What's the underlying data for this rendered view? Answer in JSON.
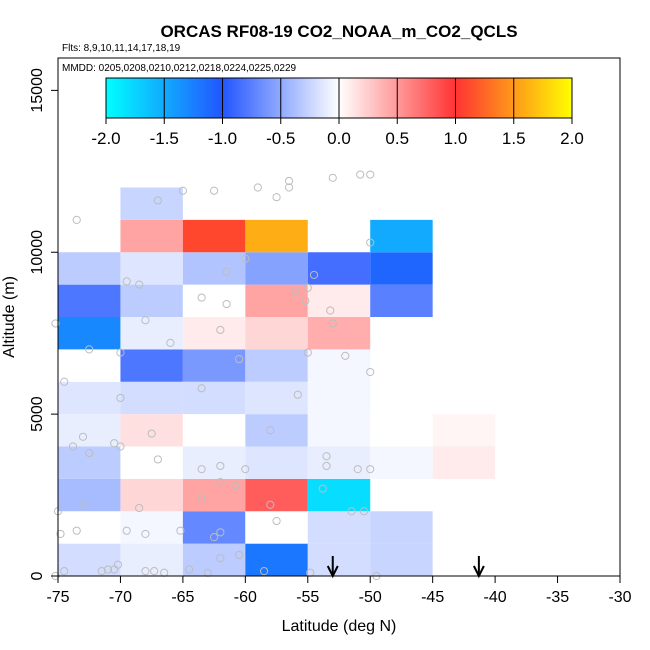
{
  "chart_data": {
    "type": "heatmap",
    "title": "ORCAS RF08-19 CO2_NOAA_m_CO2_QCLS",
    "subtitle_flights": "Flts: 8,9,10,11,14,17,18,19",
    "subtitle_dates": "MMDD: 0205,0208,0210,0212,0218,0224,0225,0229",
    "xlabel": "Latitude (deg N)",
    "ylabel": "Altitude (m)",
    "xlim": [
      -75,
      -30
    ],
    "ylim": [
      0,
      16000
    ],
    "xticks": [
      -75,
      -70,
      -65,
      -60,
      -55,
      -50,
      -45,
      -40,
      -35,
      -30
    ],
    "xtick_labels": [
      "-75",
      "-70",
      "-65",
      "-60",
      "-55",
      "-50",
      "-45",
      "-40",
      "-35",
      "-30"
    ],
    "yticks": [
      0,
      5000,
      10000,
      15000
    ],
    "ytick_labels": [
      "0",
      "5000",
      "10000",
      "15000"
    ],
    "colorbar": {
      "min": -2.0,
      "max": 2.0,
      "ticks": [
        -2.0,
        -1.5,
        -1.0,
        -0.5,
        0.0,
        0.5,
        1.0,
        1.5,
        2.0
      ],
      "tick_labels": [
        "-2.0",
        "-1.5",
        "-1.0",
        "-0.5",
        "0.0",
        "0.5",
        "1.0",
        "1.5",
        "2.0"
      ],
      "stops": [
        "#00ffff",
        "#2255ff",
        "#ffffff",
        "#ff3333",
        "#ffff00"
      ]
    },
    "cell_width_deg": 5,
    "cell_height_m": 1000,
    "cells": [
      {
        "lat": -75,
        "alt": 0,
        "value": -0.2
      },
      {
        "lat": -70,
        "alt": 0,
        "value": -0.1
      },
      {
        "lat": -65,
        "alt": 0,
        "value": -0.3
      },
      {
        "lat": -60,
        "alt": 0,
        "value": -1.2
      },
      {
        "lat": -55,
        "alt": 0,
        "value": -0.2
      },
      {
        "lat": -50,
        "alt": 0,
        "value": -0.25
      },
      {
        "lat": -75,
        "alt": 1000,
        "value": 0.0
      },
      {
        "lat": -70,
        "alt": 1000,
        "value": -0.05
      },
      {
        "lat": -65,
        "alt": 1000,
        "value": -0.7
      },
      {
        "lat": -60,
        "alt": 1000,
        "value": 0.0
      },
      {
        "lat": -55,
        "alt": 1000,
        "value": -0.2
      },
      {
        "lat": -50,
        "alt": 1000,
        "value": -0.25
      },
      {
        "lat": -75,
        "alt": 2000,
        "value": -0.4
      },
      {
        "lat": -70,
        "alt": 2000,
        "value": 0.2
      },
      {
        "lat": -65,
        "alt": 2000,
        "value": 0.45
      },
      {
        "lat": -60,
        "alt": 2000,
        "value": 0.8
      },
      {
        "lat": -55,
        "alt": 2000,
        "value": -1.8
      },
      {
        "lat": -75,
        "alt": 3000,
        "value": -0.3
      },
      {
        "lat": -70,
        "alt": 3000,
        "value": 0.0
      },
      {
        "lat": -65,
        "alt": 3000,
        "value": -0.1
      },
      {
        "lat": -60,
        "alt": 3000,
        "value": -0.15
      },
      {
        "lat": -55,
        "alt": 3000,
        "value": -0.1
      },
      {
        "lat": -50,
        "alt": 3000,
        "value": -0.05
      },
      {
        "lat": -45,
        "alt": 3000,
        "value": 0.1
      },
      {
        "lat": -75,
        "alt": 4000,
        "value": -0.1
      },
      {
        "lat": -70,
        "alt": 4000,
        "value": 0.15
      },
      {
        "lat": -65,
        "alt": 4000,
        "value": 0.0
      },
      {
        "lat": -60,
        "alt": 4000,
        "value": -0.3
      },
      {
        "lat": -55,
        "alt": 4000,
        "value": -0.05
      },
      {
        "lat": -50,
        "alt": 4000,
        "value": 0.0
      },
      {
        "lat": -45,
        "alt": 4000,
        "value": 0.05
      },
      {
        "lat": -75,
        "alt": 5000,
        "value": -0.15
      },
      {
        "lat": -70,
        "alt": 5000,
        "value": -0.2
      },
      {
        "lat": -65,
        "alt": 5000,
        "value": -0.2
      },
      {
        "lat": -60,
        "alt": 5000,
        "value": -0.15
      },
      {
        "lat": -55,
        "alt": 5000,
        "value": -0.05
      },
      {
        "lat": -75,
        "alt": 6000,
        "value": 0.0
      },
      {
        "lat": -70,
        "alt": 6000,
        "value": -0.8
      },
      {
        "lat": -65,
        "alt": 6000,
        "value": -0.6
      },
      {
        "lat": -60,
        "alt": 6000,
        "value": -0.3
      },
      {
        "lat": -55,
        "alt": 6000,
        "value": -0.05
      },
      {
        "lat": -75,
        "alt": 7000,
        "value": -1.3
      },
      {
        "lat": -70,
        "alt": 7000,
        "value": -0.1
      },
      {
        "lat": -65,
        "alt": 7000,
        "value": 0.1
      },
      {
        "lat": -60,
        "alt": 7000,
        "value": 0.2
      },
      {
        "lat": -55,
        "alt": 7000,
        "value": 0.4
      },
      {
        "lat": -75,
        "alt": 8000,
        "value": -0.8
      },
      {
        "lat": -70,
        "alt": 8000,
        "value": -0.3
      },
      {
        "lat": -65,
        "alt": 8000,
        "value": 0.0
      },
      {
        "lat": -60,
        "alt": 8000,
        "value": 0.45
      },
      {
        "lat": -55,
        "alt": 8000,
        "value": 0.1
      },
      {
        "lat": -50,
        "alt": 8000,
        "value": -0.75
      },
      {
        "lat": -75,
        "alt": 9000,
        "value": -0.3
      },
      {
        "lat": -70,
        "alt": 9000,
        "value": -0.15
      },
      {
        "lat": -65,
        "alt": 9000,
        "value": -0.35
      },
      {
        "lat": -60,
        "alt": 9000,
        "value": -0.55
      },
      {
        "lat": -55,
        "alt": 9000,
        "value": -0.85
      },
      {
        "lat": -50,
        "alt": 9000,
        "value": -1.1
      },
      {
        "lat": -70,
        "alt": 10000,
        "value": 0.45
      },
      {
        "lat": -65,
        "alt": 10000,
        "value": 1.1
      },
      {
        "lat": -60,
        "alt": 10000,
        "value": 1.6
      },
      {
        "lat": -50,
        "alt": 10000,
        "value": -1.5
      },
      {
        "lat": -70,
        "alt": 11000,
        "value": -0.25
      }
    ],
    "observations": [
      [
        -75.2,
        0
      ],
      [
        -74.5,
        150
      ],
      [
        -71.5,
        150
      ],
      [
        -71,
        200
      ],
      [
        -70.5,
        200
      ],
      [
        -70.2,
        350
      ],
      [
        -68,
        150
      ],
      [
        -67.3,
        150
      ],
      [
        -66.5,
        100
      ],
      [
        -64.5,
        200
      ],
      [
        -63,
        100
      ],
      [
        -62,
        550
      ],
      [
        -60.5,
        650
      ],
      [
        -58.5,
        150
      ],
      [
        -54.8,
        100
      ],
      [
        -49.5,
        0
      ],
      [
        -74.8,
        1300
      ],
      [
        -73.5,
        1400
      ],
      [
        -69.5,
        1400
      ],
      [
        -68,
        1300
      ],
      [
        -65.2,
        1400
      ],
      [
        -62.5,
        1200
      ],
      [
        -62,
        1350
      ],
      [
        -57.5,
        1700
      ],
      [
        -51.5,
        2000
      ],
      [
        -50.5,
        2000
      ],
      [
        -75,
        2000
      ],
      [
        -73,
        2200
      ],
      [
        -68.5,
        2100
      ],
      [
        -63.5,
        2400
      ],
      [
        -62,
        2900
      ],
      [
        -60.8,
        2800
      ],
      [
        -58,
        2200
      ],
      [
        -53.8,
        2700
      ],
      [
        -72.5,
        3800
      ],
      [
        -70.5,
        4100
      ],
      [
        -70,
        4000
      ],
      [
        -67,
        3600
      ],
      [
        -63.5,
        3300
      ],
      [
        -62,
        3400
      ],
      [
        -60,
        3300
      ],
      [
        -53.5,
        3700
      ],
      [
        -53.5,
        3400
      ],
      [
        -51,
        3300
      ],
      [
        -50,
        3300
      ],
      [
        -73.8,
        4000
      ],
      [
        -73,
        4300
      ],
      [
        -67.5,
        4400
      ],
      [
        -58,
        4500
      ],
      [
        -70,
        5500
      ],
      [
        -63.5,
        5800
      ],
      [
        -55.8,
        5600
      ],
      [
        -74.5,
        6000
      ],
      [
        -72.5,
        7000
      ],
      [
        -70,
        6900
      ],
      [
        -66,
        7200
      ],
      [
        -62,
        7600
      ],
      [
        -60.5,
        6700
      ],
      [
        -55,
        6900
      ],
      [
        -53,
        7800
      ],
      [
        -52,
        6800
      ],
      [
        -50,
        6300
      ],
      [
        -75.2,
        7800
      ],
      [
        -68,
        7900
      ],
      [
        -63.5,
        8600
      ],
      [
        -61.5,
        8400
      ],
      [
        -56,
        8800
      ],
      [
        -55.2,
        8500
      ],
      [
        -55,
        8900
      ],
      [
        -53.2,
        8200
      ],
      [
        -69.5,
        9100
      ],
      [
        -68.5,
        9000
      ],
      [
        -61.5,
        9400
      ],
      [
        -60,
        9800
      ],
      [
        -54.5,
        9300
      ],
      [
        -50,
        10300
      ],
      [
        -67,
        11600
      ],
      [
        -65,
        11900
      ],
      [
        -73.5,
        11000
      ],
      [
        -62.5,
        11900
      ],
      [
        -59,
        12000
      ],
      [
        -57.5,
        11700
      ],
      [
        -56.5,
        12200
      ],
      [
        -56.5,
        12000
      ],
      [
        -53,
        12300
      ],
      [
        -50.8,
        12400
      ],
      [
        -50,
        12400
      ]
    ],
    "arrows_lat": [
      -53,
      -41.3
    ]
  }
}
